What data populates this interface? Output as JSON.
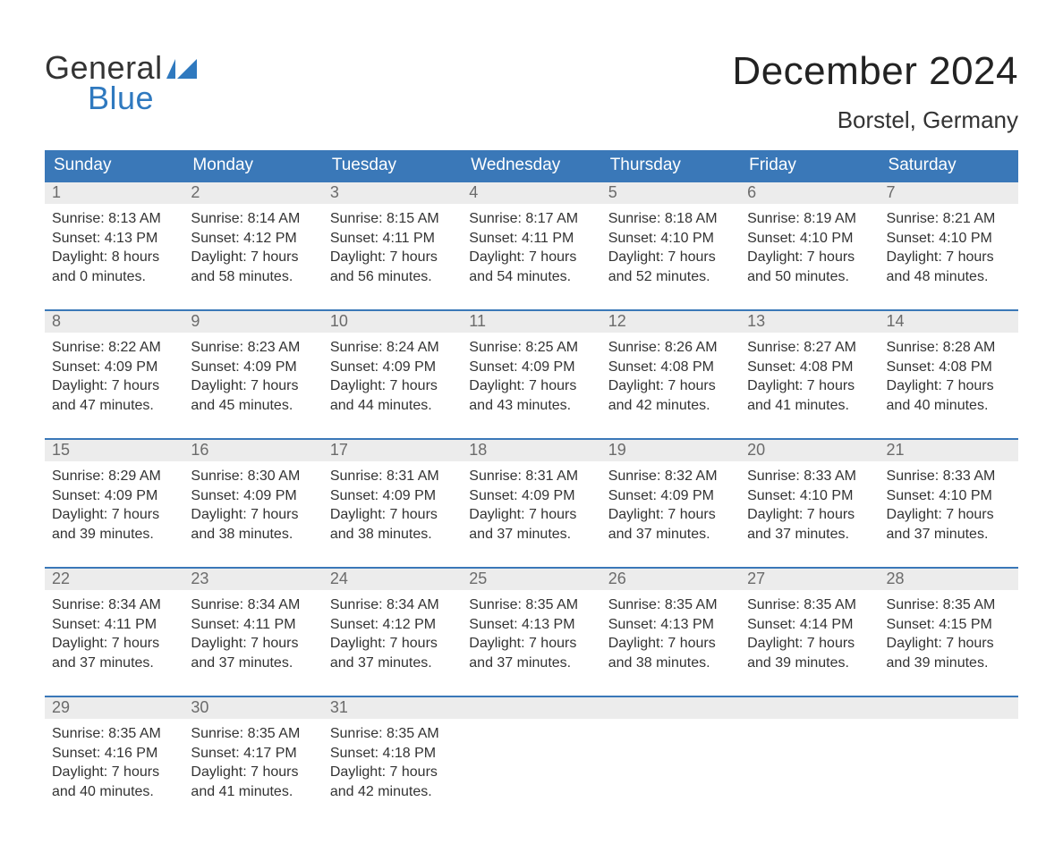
{
  "logo": {
    "text_general": "General",
    "text_blue": "Blue",
    "flag_color": "#2f79bf"
  },
  "title": {
    "month": "December 2024",
    "location": "Borstel, Germany",
    "title_fontsize": 44,
    "location_fontsize": 26,
    "title_color": "#222222",
    "location_color": "#333333"
  },
  "calendar": {
    "type": "table",
    "header_bg": "#3a78b8",
    "header_text_color": "#ffffff",
    "daynum_bg": "#ececec",
    "daynum_color": "#6b6b6b",
    "row_border_color": "#3a78b8",
    "body_text_color": "#333333",
    "body_fontsize": 16,
    "header_fontsize": 19,
    "columns": [
      "Sunday",
      "Monday",
      "Tuesday",
      "Wednesday",
      "Thursday",
      "Friday",
      "Saturday"
    ],
    "weeks": [
      {
        "days": [
          {
            "n": "1",
            "sunrise": "8:13 AM",
            "sunset": "4:13 PM",
            "dl_h": "8",
            "dl_m": "0"
          },
          {
            "n": "2",
            "sunrise": "8:14 AM",
            "sunset": "4:12 PM",
            "dl_h": "7",
            "dl_m": "58"
          },
          {
            "n": "3",
            "sunrise": "8:15 AM",
            "sunset": "4:11 PM",
            "dl_h": "7",
            "dl_m": "56"
          },
          {
            "n": "4",
            "sunrise": "8:17 AM",
            "sunset": "4:11 PM",
            "dl_h": "7",
            "dl_m": "54"
          },
          {
            "n": "5",
            "sunrise": "8:18 AM",
            "sunset": "4:10 PM",
            "dl_h": "7",
            "dl_m": "52"
          },
          {
            "n": "6",
            "sunrise": "8:19 AM",
            "sunset": "4:10 PM",
            "dl_h": "7",
            "dl_m": "50"
          },
          {
            "n": "7",
            "sunrise": "8:21 AM",
            "sunset": "4:10 PM",
            "dl_h": "7",
            "dl_m": "48"
          }
        ]
      },
      {
        "days": [
          {
            "n": "8",
            "sunrise": "8:22 AM",
            "sunset": "4:09 PM",
            "dl_h": "7",
            "dl_m": "47"
          },
          {
            "n": "9",
            "sunrise": "8:23 AM",
            "sunset": "4:09 PM",
            "dl_h": "7",
            "dl_m": "45"
          },
          {
            "n": "10",
            "sunrise": "8:24 AM",
            "sunset": "4:09 PM",
            "dl_h": "7",
            "dl_m": "44"
          },
          {
            "n": "11",
            "sunrise": "8:25 AM",
            "sunset": "4:09 PM",
            "dl_h": "7",
            "dl_m": "43"
          },
          {
            "n": "12",
            "sunrise": "8:26 AM",
            "sunset": "4:08 PM",
            "dl_h": "7",
            "dl_m": "42"
          },
          {
            "n": "13",
            "sunrise": "8:27 AM",
            "sunset": "4:08 PM",
            "dl_h": "7",
            "dl_m": "41"
          },
          {
            "n": "14",
            "sunrise": "8:28 AM",
            "sunset": "4:08 PM",
            "dl_h": "7",
            "dl_m": "40"
          }
        ]
      },
      {
        "days": [
          {
            "n": "15",
            "sunrise": "8:29 AM",
            "sunset": "4:09 PM",
            "dl_h": "7",
            "dl_m": "39"
          },
          {
            "n": "16",
            "sunrise": "8:30 AM",
            "sunset": "4:09 PM",
            "dl_h": "7",
            "dl_m": "38"
          },
          {
            "n": "17",
            "sunrise": "8:31 AM",
            "sunset": "4:09 PM",
            "dl_h": "7",
            "dl_m": "38"
          },
          {
            "n": "18",
            "sunrise": "8:31 AM",
            "sunset": "4:09 PM",
            "dl_h": "7",
            "dl_m": "37"
          },
          {
            "n": "19",
            "sunrise": "8:32 AM",
            "sunset": "4:09 PM",
            "dl_h": "7",
            "dl_m": "37"
          },
          {
            "n": "20",
            "sunrise": "8:33 AM",
            "sunset": "4:10 PM",
            "dl_h": "7",
            "dl_m": "37"
          },
          {
            "n": "21",
            "sunrise": "8:33 AM",
            "sunset": "4:10 PM",
            "dl_h": "7",
            "dl_m": "37"
          }
        ]
      },
      {
        "days": [
          {
            "n": "22",
            "sunrise": "8:34 AM",
            "sunset": "4:11 PM",
            "dl_h": "7",
            "dl_m": "37"
          },
          {
            "n": "23",
            "sunrise": "8:34 AM",
            "sunset": "4:11 PM",
            "dl_h": "7",
            "dl_m": "37"
          },
          {
            "n": "24",
            "sunrise": "8:34 AM",
            "sunset": "4:12 PM",
            "dl_h": "7",
            "dl_m": "37"
          },
          {
            "n": "25",
            "sunrise": "8:35 AM",
            "sunset": "4:13 PM",
            "dl_h": "7",
            "dl_m": "37"
          },
          {
            "n": "26",
            "sunrise": "8:35 AM",
            "sunset": "4:13 PM",
            "dl_h": "7",
            "dl_m": "38"
          },
          {
            "n": "27",
            "sunrise": "8:35 AM",
            "sunset": "4:14 PM",
            "dl_h": "7",
            "dl_m": "39"
          },
          {
            "n": "28",
            "sunrise": "8:35 AM",
            "sunset": "4:15 PM",
            "dl_h": "7",
            "dl_m": "39"
          }
        ]
      },
      {
        "days": [
          {
            "n": "29",
            "sunrise": "8:35 AM",
            "sunset": "4:16 PM",
            "dl_h": "7",
            "dl_m": "40"
          },
          {
            "n": "30",
            "sunrise": "8:35 AM",
            "sunset": "4:17 PM",
            "dl_h": "7",
            "dl_m": "41"
          },
          {
            "n": "31",
            "sunrise": "8:35 AM",
            "sunset": "4:18 PM",
            "dl_h": "7",
            "dl_m": "42"
          },
          null,
          null,
          null,
          null
        ]
      }
    ],
    "labels": {
      "sunrise_prefix": "Sunrise: ",
      "sunset_prefix": "Sunset: ",
      "daylight_prefix": "Daylight: ",
      "hours_word": " hours",
      "and_word": "and ",
      "minutes_word": " minutes."
    }
  }
}
